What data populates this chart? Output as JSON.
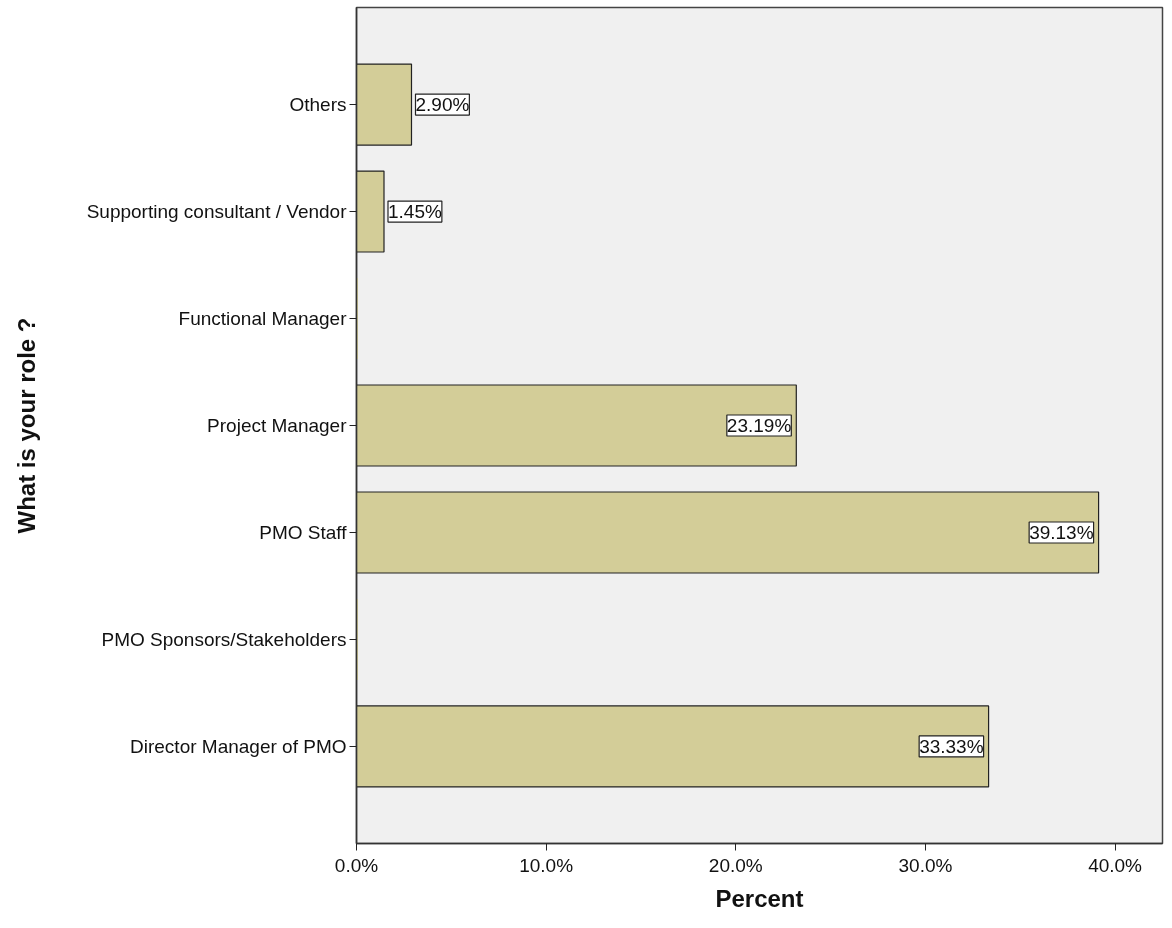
{
  "chart_data": {
    "type": "bar",
    "orientation": "horizontal",
    "xlabel": "Percent",
    "ylabel": "What is your role ?",
    "categories": [
      "Others",
      "Supporting consultant / Vendor",
      "Functional Manager",
      "Project Manager",
      "PMO Staff",
      "PMO Sponsors/Stakeholders",
      "Director Manager of PMO"
    ],
    "values": [
      2.9,
      1.45,
      0,
      23.19,
      39.13,
      0,
      33.33
    ],
    "value_labels": [
      "2.90%",
      "1.45%",
      null,
      "23.19%",
      "39.13%",
      null,
      "33.33%"
    ],
    "color": "#d3cd98",
    "xlim": [
      0,
      42.5
    ],
    "xticks": [
      {
        "value": 0,
        "label": "0.0%"
      },
      {
        "value": 10,
        "label": "10.0%"
      },
      {
        "value": 20,
        "label": "20.0%"
      },
      {
        "value": 30,
        "label": "30.0%"
      },
      {
        "value": 40,
        "label": "40.0%"
      }
    ]
  }
}
